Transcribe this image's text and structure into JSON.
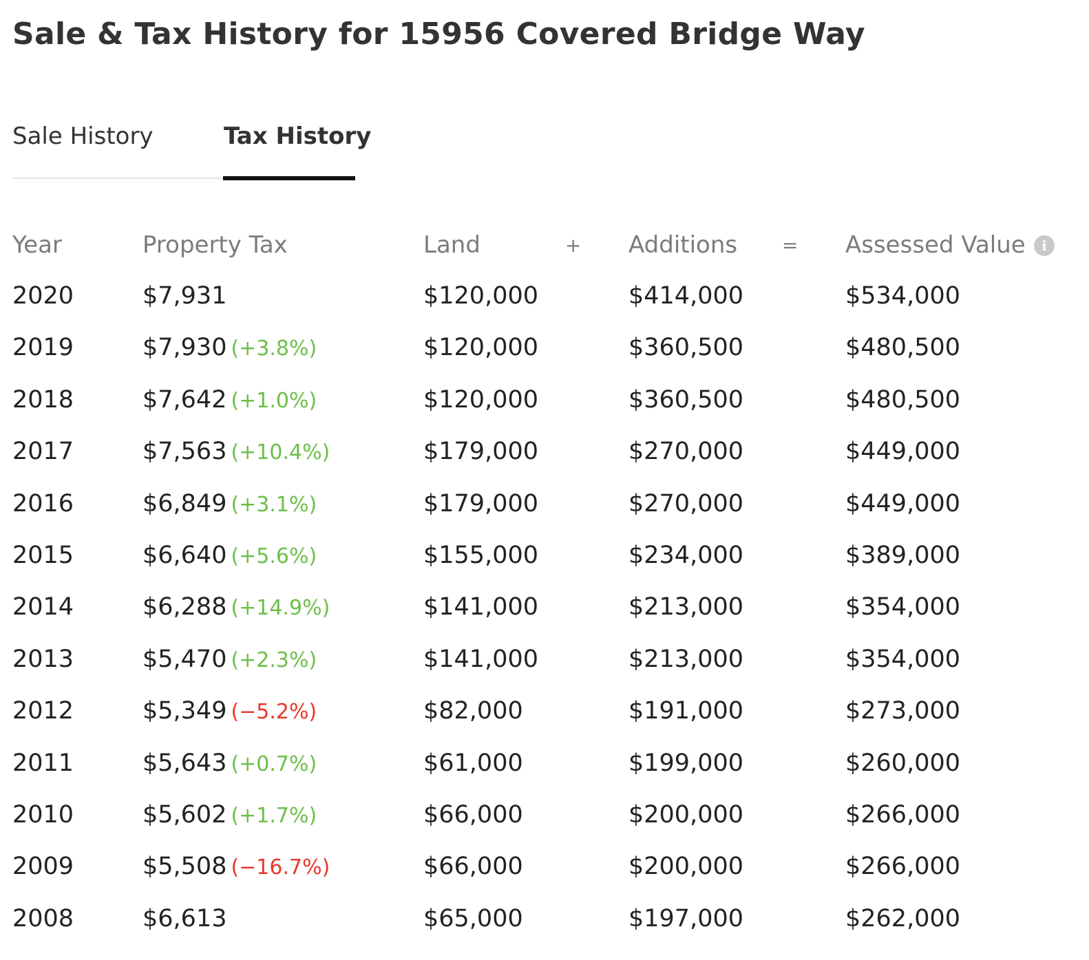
{
  "title": "Sale & Tax History for 15956 Covered Bridge Way",
  "tabs": [
    {
      "label": "Sale History",
      "active": false
    },
    {
      "label": "Tax History",
      "active": true
    }
  ],
  "table": {
    "headers": {
      "year": "Year",
      "property_tax": "Property Tax",
      "land": "Land",
      "plus": "+",
      "additions": "Additions",
      "equals": "=",
      "assessed_value": "Assessed Value"
    },
    "info_icon": "info-icon",
    "colors": {
      "increase": "#6cbf48",
      "decrease": "#e8382b"
    },
    "rows": [
      {
        "year": "2020",
        "tax": "$7,931",
        "change": "",
        "direction": "",
        "land": "$120,000",
        "additions": "$414,000",
        "assessed": "$534,000"
      },
      {
        "year": "2019",
        "tax": "$7,930",
        "change": "(+3.8%)",
        "direction": "up",
        "land": "$120,000",
        "additions": "$360,500",
        "assessed": "$480,500"
      },
      {
        "year": "2018",
        "tax": "$7,642",
        "change": "(+1.0%)",
        "direction": "up",
        "land": "$120,000",
        "additions": "$360,500",
        "assessed": "$480,500"
      },
      {
        "year": "2017",
        "tax": "$7,563",
        "change": "(+10.4%)",
        "direction": "up",
        "land": "$179,000",
        "additions": "$270,000",
        "assessed": "$449,000"
      },
      {
        "year": "2016",
        "tax": "$6,849",
        "change": "(+3.1%)",
        "direction": "up",
        "land": "$179,000",
        "additions": "$270,000",
        "assessed": "$449,000"
      },
      {
        "year": "2015",
        "tax": "$6,640",
        "change": "(+5.6%)",
        "direction": "up",
        "land": "$155,000",
        "additions": "$234,000",
        "assessed": "$389,000"
      },
      {
        "year": "2014",
        "tax": "$6,288",
        "change": "(+14.9%)",
        "direction": "up",
        "land": "$141,000",
        "additions": "$213,000",
        "assessed": "$354,000"
      },
      {
        "year": "2013",
        "tax": "$5,470",
        "change": "(+2.3%)",
        "direction": "up",
        "land": "$141,000",
        "additions": "$213,000",
        "assessed": "$354,000"
      },
      {
        "year": "2012",
        "tax": "$5,349",
        "change": "(−5.2%)",
        "direction": "down",
        "land": "$82,000",
        "additions": "$191,000",
        "assessed": "$273,000"
      },
      {
        "year": "2011",
        "tax": "$5,643",
        "change": "(+0.7%)",
        "direction": "up",
        "land": "$61,000",
        "additions": "$199,000",
        "assessed": "$260,000"
      },
      {
        "year": "2010",
        "tax": "$5,602",
        "change": "(+1.7%)",
        "direction": "up",
        "land": "$66,000",
        "additions": "$200,000",
        "assessed": "$266,000"
      },
      {
        "year": "2009",
        "tax": "$5,508",
        "change": "(−16.7%)",
        "direction": "down",
        "land": "$66,000",
        "additions": "$200,000",
        "assessed": "$266,000"
      },
      {
        "year": "2008",
        "tax": "$6,613",
        "change": "",
        "direction": "",
        "land": "$65,000",
        "additions": "$197,000",
        "assessed": "$262,000"
      }
    ]
  }
}
